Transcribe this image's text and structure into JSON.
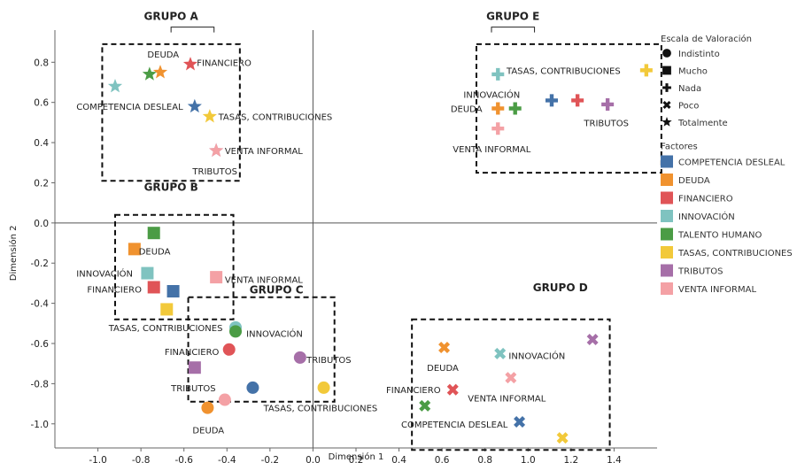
{
  "chart_data": {
    "type": "scatter",
    "title": "",
    "xlabel": "Dimensión 1",
    "ylabel": "Dimensión 2",
    "xlim": [
      -1.2,
      1.6
    ],
    "ylim": [
      -1.12,
      0.96
    ],
    "x_ticks": [
      -1.0,
      -0.8,
      -0.6,
      -0.4,
      -0.2,
      0.0,
      0.2,
      0.4,
      0.6,
      0.8,
      1.0,
      1.2,
      1.4
    ],
    "x_tick_labels": [
      "-1.0",
      "-0.8",
      "-0.6",
      "-0.4",
      "-0.2",
      "0.0",
      "0.2",
      "0.4",
      "0.6",
      "0.8",
      "1.0",
      "1.2",
      "1.4"
    ],
    "y_ticks": [
      0.8,
      0.6,
      0.4,
      0.2,
      0.0,
      -0.2,
      -0.4,
      -0.6,
      -0.8,
      -1.0
    ],
    "y_tick_labels": [
      "0.8",
      "0.6",
      "0.4",
      "0.2",
      "0.0",
      "-0.2",
      "-0.4",
      "-0.6",
      "-0.8",
      "-1.0"
    ],
    "grid": false,
    "legend_placement": "right",
    "shape_legend": {
      "title": "Escala de Valoración",
      "items": [
        {
          "name": "Indistinto",
          "shape": "circle"
        },
        {
          "name": "Mucho",
          "shape": "square"
        },
        {
          "name": "Nada",
          "shape": "plus"
        },
        {
          "name": "Poco",
          "shape": "cross"
        },
        {
          "name": "Totalmente",
          "shape": "star"
        }
      ]
    },
    "color_legend": {
      "title": "Factores",
      "items": [
        {
          "name": "COMPETENCIA DESLEAL",
          "color": "#4472a8"
        },
        {
          "name": "DEUDA",
          "color": "#f0922f"
        },
        {
          "name": "FINANCIERO",
          "color": "#e05457"
        },
        {
          "name": "INNOVACIÓN",
          "color": "#7fc3c0"
        },
        {
          "name": "TALENTO HUMANO",
          "color": "#4b9c45"
        },
        {
          "name": "TASAS, CONTRIBUCIONES",
          "color": "#f2c93a"
        },
        {
          "name": "TRIBUTOS",
          "color": "#a66fa8"
        },
        {
          "name": "VENTA INFORMAL",
          "color": "#f4a1a5"
        }
      ]
    },
    "series": [
      {
        "shape": "star",
        "factor": "INNOVACIÓN",
        "x": -0.92,
        "y": 0.68
      },
      {
        "shape": "star",
        "factor": "TALENTO HUMANO",
        "x": -0.76,
        "y": 0.74
      },
      {
        "shape": "star",
        "factor": "DEUDA",
        "x": -0.71,
        "y": 0.75
      },
      {
        "shape": "star",
        "factor": "FINANCIERO",
        "x": -0.57,
        "y": 0.79
      },
      {
        "shape": "star",
        "factor": "COMPETENCIA DESLEAL",
        "x": -0.55,
        "y": 0.58
      },
      {
        "shape": "star",
        "factor": "TASAS, CONTRIBUCIONES",
        "x": -0.48,
        "y": 0.53
      },
      {
        "shape": "star",
        "factor": "TRIBUTOS",
        "x": -0.45,
        "y": 0.36
      },
      {
        "shape": "star",
        "factor": "VENTA INFORMAL",
        "x": -0.45,
        "y": 0.36
      },
      {
        "shape": "plus",
        "factor": "INNOVACIÓN",
        "x": 0.86,
        "y": 0.74
      },
      {
        "shape": "plus",
        "factor": "DEUDA",
        "x": 0.86,
        "y": 0.57
      },
      {
        "shape": "plus",
        "factor": "TALENTO HUMANO",
        "x": 0.94,
        "y": 0.57
      },
      {
        "shape": "plus",
        "factor": "VENTA INFORMAL",
        "x": 0.86,
        "y": 0.47
      },
      {
        "shape": "plus",
        "factor": "COMPETENCIA DESLEAL",
        "x": 1.11,
        "y": 0.61
      },
      {
        "shape": "plus",
        "factor": "FINANCIERO",
        "x": 1.23,
        "y": 0.61
      },
      {
        "shape": "plus",
        "factor": "TRIBUTOS",
        "x": 1.37,
        "y": 0.59
      },
      {
        "shape": "plus",
        "factor": "TASAS, CONTRIBUCIONES",
        "x": 1.55,
        "y": 0.76
      },
      {
        "shape": "square",
        "factor": "TALENTO HUMANO",
        "x": -0.74,
        "y": -0.05
      },
      {
        "shape": "square",
        "factor": "DEUDA",
        "x": -0.83,
        "y": -0.13
      },
      {
        "shape": "square",
        "factor": "INNOVACIÓN",
        "x": -0.77,
        "y": -0.25
      },
      {
        "shape": "square",
        "factor": "FINANCIERO",
        "x": -0.74,
        "y": -0.32
      },
      {
        "shape": "square",
        "factor": "COMPETENCIA DESLEAL",
        "x": -0.65,
        "y": -0.34
      },
      {
        "shape": "square",
        "factor": "TASAS, CONTRIBUCIONES",
        "x": -0.68,
        "y": -0.43
      },
      {
        "shape": "square",
        "factor": "VENTA INFORMAL",
        "x": -0.45,
        "y": -0.27
      },
      {
        "shape": "square",
        "factor": "TRIBUTOS",
        "x": -0.55,
        "y": -0.72
      },
      {
        "shape": "circle",
        "factor": "INNOVACIÓN",
        "x": -0.36,
        "y": -0.52
      },
      {
        "shape": "circle",
        "factor": "TALENTO HUMANO",
        "x": -0.36,
        "y": -0.54
      },
      {
        "shape": "circle",
        "factor": "FINANCIERO",
        "x": -0.39,
        "y": -0.63
      },
      {
        "shape": "circle",
        "factor": "TRIBUTOS",
        "x": -0.06,
        "y": -0.67
      },
      {
        "shape": "circle",
        "factor": "COMPETENCIA DESLEAL",
        "x": -0.28,
        "y": -0.82
      },
      {
        "shape": "circle",
        "factor": "VENTA INFORMAL",
        "x": -0.41,
        "y": -0.88
      },
      {
        "shape": "circle",
        "factor": "DEUDA",
        "x": -0.49,
        "y": -0.92
      },
      {
        "shape": "circle",
        "factor": "TASAS, CONTRIBUCIONES",
        "x": 0.05,
        "y": -0.82
      },
      {
        "shape": "cross",
        "factor": "DEUDA",
        "x": 0.61,
        "y": -0.62
      },
      {
        "shape": "cross",
        "factor": "FINANCIERO",
        "x": 0.65,
        "y": -0.83
      },
      {
        "shape": "cross",
        "factor": "TALENTO HUMANO",
        "x": 0.52,
        "y": -0.91
      },
      {
        "shape": "cross",
        "factor": "INNOVACIÓN",
        "x": 0.87,
        "y": -0.65
      },
      {
        "shape": "cross",
        "factor": "VENTA INFORMAL",
        "x": 0.92,
        "y": -0.77
      },
      {
        "shape": "cross",
        "factor": "COMPETENCIA DESLEAL",
        "x": 0.96,
        "y": -0.99
      },
      {
        "shape": "cross",
        "factor": "TRIBUTOS",
        "x": 1.3,
        "y": -0.58
      },
      {
        "shape": "cross",
        "factor": "TASAS, CONTRIBUCIONES",
        "x": 1.16,
        "y": -1.07
      }
    ],
    "point_labels": [
      {
        "text": "DEUDA",
        "x": -0.77,
        "y": 0.84
      },
      {
        "text": "FINANCIERO",
        "x": -0.54,
        "y": 0.8
      },
      {
        "text": "COMPETENCIA DESLEAL",
        "x": -1.1,
        "y": 0.58
      },
      {
        "text": "TASAS, CONTRIBUCIONES",
        "x": -0.44,
        "y": 0.53
      },
      {
        "text": "VENTA INFORMAL",
        "x": -0.41,
        "y": 0.36
      },
      {
        "text": "TRIBUTOS",
        "x": -0.56,
        "y": 0.26
      },
      {
        "text": "INNOVACIÓN",
        "x": 0.7,
        "y": 0.64
      },
      {
        "text": "TASAS, CONTRIBUCIONES",
        "x": 0.9,
        "y": 0.76
      },
      {
        "text": "DEUDA",
        "x": 0.64,
        "y": 0.57
      },
      {
        "text": "TRIBUTOS",
        "x": 1.26,
        "y": 0.5
      },
      {
        "text": "VENTA INFORMAL",
        "x": 0.65,
        "y": 0.37
      },
      {
        "text": "DEUDA",
        "x": -0.81,
        "y": -0.14
      },
      {
        "text": "INNOVACIÓN",
        "x": -1.1,
        "y": -0.25
      },
      {
        "text": "FINANCIERO",
        "x": -1.05,
        "y": -0.33
      },
      {
        "text": "VENTA INFORMAL",
        "x": -0.41,
        "y": -0.28
      },
      {
        "text": "TASAS, CONTRIBUCIONES",
        "x": -0.95,
        "y": -0.52
      },
      {
        "text": "INNOVACIÓN",
        "x": -0.31,
        "y": -0.55
      },
      {
        "text": "FINANCIERO",
        "x": -0.69,
        "y": -0.64
      },
      {
        "text": "TRIBUTOS",
        "x": -0.03,
        "y": -0.68
      },
      {
        "text": "TRIBUTOS",
        "x": -0.66,
        "y": -0.82
      },
      {
        "text": "TASAS, CONTRIBUCIONES",
        "x": -0.23,
        "y": -0.92
      },
      {
        "text": "DEUDA",
        "x": -0.56,
        "y": -1.03
      },
      {
        "text": "DEUDA",
        "x": 0.53,
        "y": -0.72
      },
      {
        "text": "INNOVACIÓN",
        "x": 0.91,
        "y": -0.66
      },
      {
        "text": "FINANCIERO",
        "x": 0.34,
        "y": -0.83
      },
      {
        "text": "VENTA INFORMAL",
        "x": 0.72,
        "y": -0.87
      },
      {
        "text": "COMPETENCIA DESLEAL",
        "x": 0.41,
        "y": -1.0
      }
    ],
    "groups": [
      {
        "name": "GRUPO A",
        "box": {
          "x0": -0.98,
          "x1": -0.34,
          "y0": 0.21,
          "y1": 0.89
        },
        "label": {
          "x": -0.66,
          "y": 1.01
        },
        "bracket": {
          "x0": -0.66,
          "x1": -0.46
        }
      },
      {
        "name": "GRUPO B",
        "box": {
          "x0": -0.92,
          "x1": -0.37,
          "y0": -0.48,
          "y1": 0.04
        },
        "label": {
          "x": -0.66,
          "y": 0.16
        },
        "bracket": null
      },
      {
        "name": "GRUPO C",
        "box": {
          "x0": -0.58,
          "x1": 0.1,
          "y0": -0.89,
          "y1": -0.37
        },
        "label": {
          "x": -0.17,
          "y": -0.35
        },
        "bracket": null
      },
      {
        "name": "GRUPO D",
        "box": {
          "x0": 0.46,
          "x1": 1.38,
          "y0": -1.13,
          "y1": -0.48
        },
        "label": {
          "x": 1.15,
          "y": -0.34
        },
        "bracket": null
      },
      {
        "name": "GRUPO E",
        "box": {
          "x0": 0.76,
          "x1": 1.62,
          "y0": 0.25,
          "y1": 0.89
        },
        "label": {
          "x": 0.93,
          "y": 1.01
        },
        "bracket": {
          "x0": 0.83,
          "x1": 1.03
        }
      }
    ]
  }
}
